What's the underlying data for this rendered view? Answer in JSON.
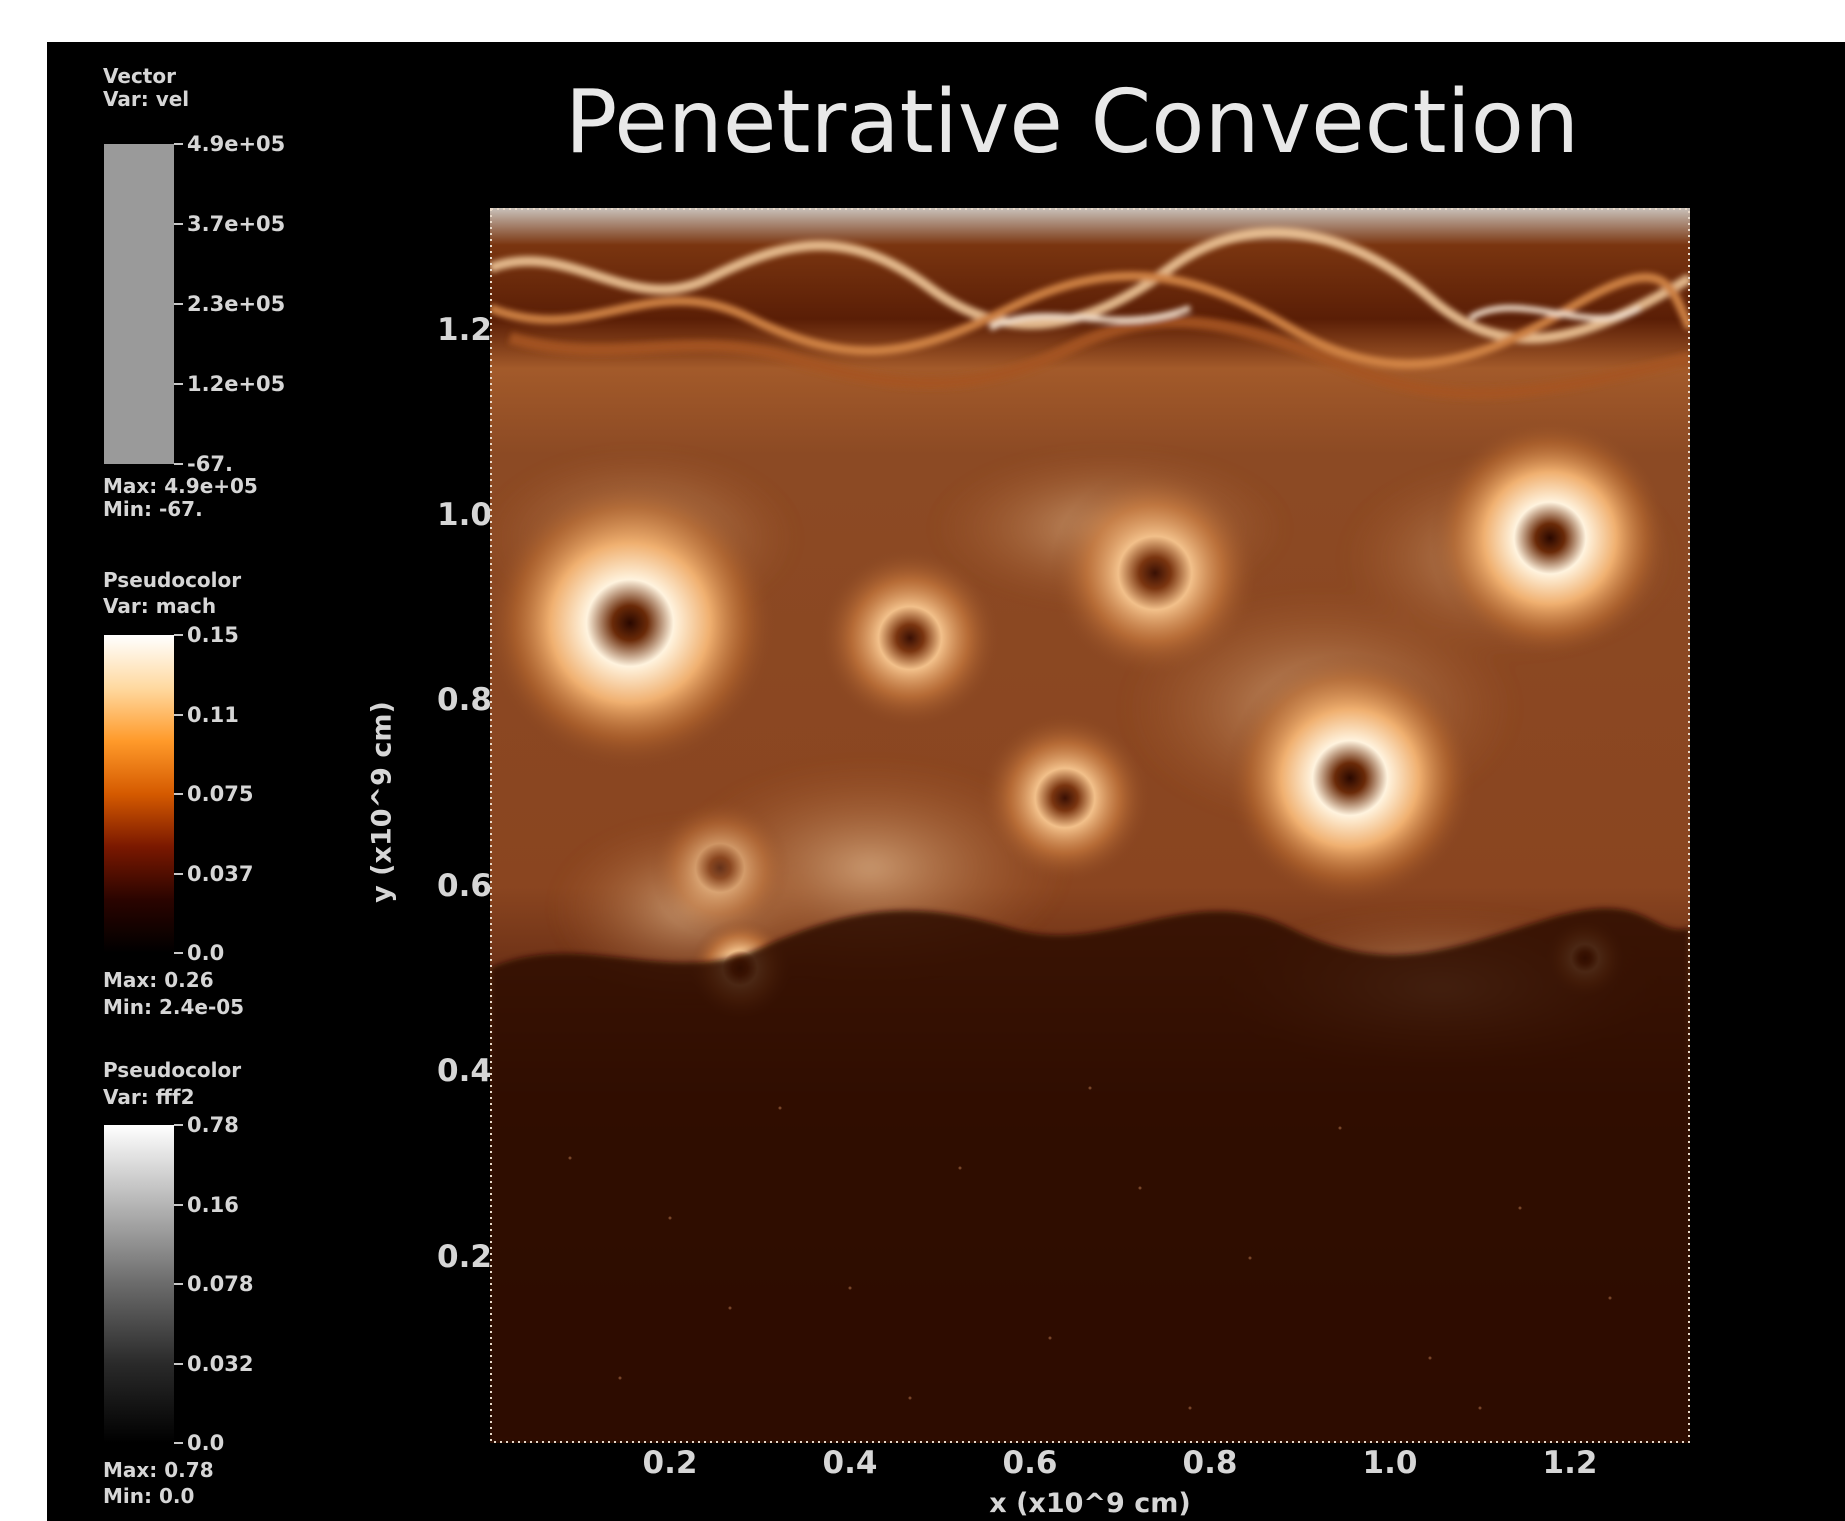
{
  "title": "Penetrative Convection",
  "legends": [
    {
      "type_label": "Vector",
      "var_label": "Var: vel",
      "ticks": [
        "4.9e+05",
        "3.7e+05",
        "2.3e+05",
        "1.2e+05",
        "-67."
      ],
      "max_label": "Max: 4.9e+05",
      "min_label": "Min: -67.",
      "colors": [
        "#9a9a9a",
        "#9a9a9a"
      ]
    },
    {
      "type_label": "Pseudocolor",
      "var_label": "Var: mach",
      "ticks": [
        "0.15",
        "0.11",
        "0.075",
        "0.037",
        "0.0"
      ],
      "max_label": "Max: 0.26",
      "min_label": "Min: 2.4e-05",
      "colors": [
        "#ffffff",
        "#ffd9a0",
        "#ff9a2a",
        "#d55a00",
        "#7a1800",
        "#2a0400",
        "#000000"
      ]
    },
    {
      "type_label": "Pseudocolor",
      "var_label": "Var: fff2",
      "ticks": [
        "0.78",
        "0.16",
        "0.078",
        "0.032",
        "0.0"
      ],
      "max_label": "Max: 0.78",
      "min_label": "Min: 0.0",
      "colors": [
        "#ffffff",
        "#b5b5b5",
        "#6b6b6b",
        "#2a2a2a",
        "#000000"
      ]
    }
  ],
  "axes": {
    "y_label": "y (x10^9 cm)",
    "x_label": "x (x10^9 cm)",
    "y_ticks": [
      "1.2",
      "1.0",
      "0.8",
      "0.6",
      "0.4",
      "0.2"
    ],
    "x_ticks": [
      "0.2",
      "0.4",
      "0.6",
      "0.8",
      "1.0",
      "1.2"
    ]
  },
  "colors": {
    "background": "#000000",
    "axis": "#c8c8c8",
    "text": "#d6d6d6"
  }
}
